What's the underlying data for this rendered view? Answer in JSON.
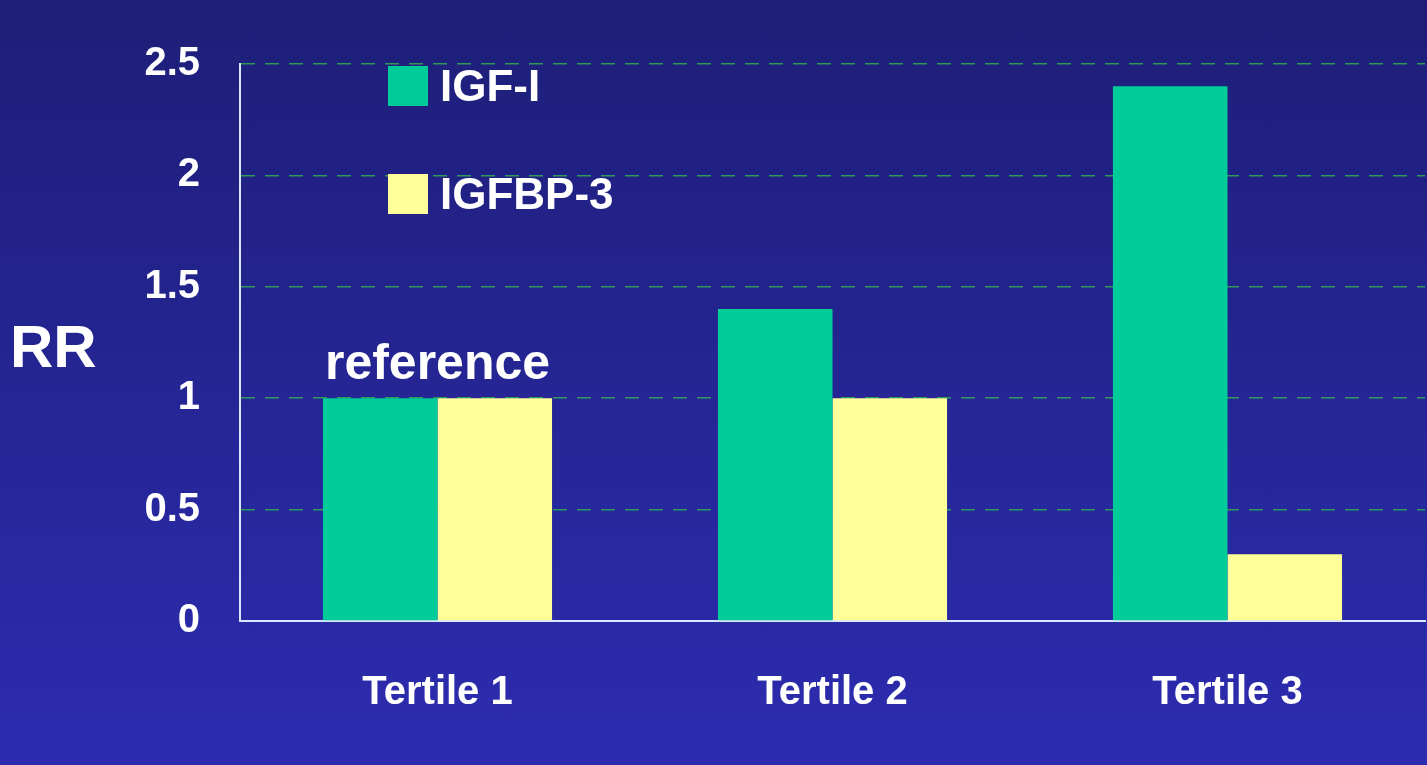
{
  "chart_data": {
    "type": "bar",
    "ylabel": "RR",
    "categories": [
      "Tertile 1",
      "Tertile 2",
      "Tertile 3"
    ],
    "series": [
      {
        "name": "IGF-I",
        "color": "#00cc99",
        "values": [
          1,
          1.4,
          2.4
        ]
      },
      {
        "name": "IGFBP-3",
        "color": "#ffff99",
        "values": [
          1,
          1,
          0.3
        ]
      }
    ],
    "ylim": [
      0,
      2.5
    ],
    "yticks": [
      0,
      0.5,
      1,
      1.5,
      2,
      2.5
    ],
    "grid": "y",
    "legend": "top left",
    "annotations": [
      {
        "text": "reference",
        "x": "Tertile 1",
        "y": 1
      }
    ]
  }
}
